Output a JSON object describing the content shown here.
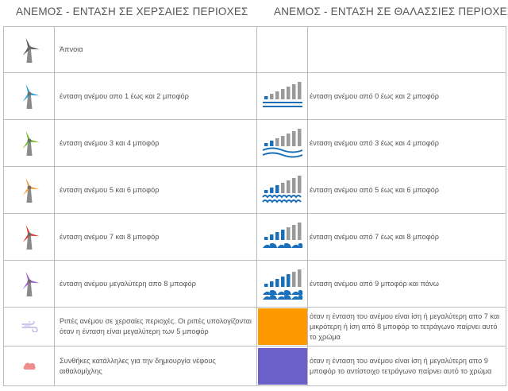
{
  "headers": {
    "land": "ΑΝΕΜΟΣ - ΕΝΤΑΣΗ ΣΕ ΧΕΡΣΑΙΕΣ ΠΕΡΙΟΧΕΣ",
    "sea": "ΑΝΕΜΟΣ - ΕΝΤΑΣΗ ΣΕ ΘΑΛΑΣΣΙΕΣ ΠΕΡΙΟΧΕΣ"
  },
  "colors": {
    "sea_blue": "#1a6fba",
    "bar_grey": "#9a9a9a",
    "gust_orange": "#ff9900",
    "fog_purple": "#6b5fc8"
  },
  "rows": [
    {
      "land_icon": "windmill-grey-icon",
      "blade_color": "#555555",
      "land_text": "Άπνοια",
      "sea_icon": "",
      "sea_text": ""
    },
    {
      "land_icon": "windmill-blue-icon",
      "blade_color": "#2a9fd6",
      "land_text": "ένταση ανέμου απο 1 έως και 2 μποφόρ",
      "sea_icon": "sea-level-1-icon",
      "sea_text": "ένταση ανέμου από 0 έως και 2 μποφόρ"
    },
    {
      "land_icon": "windmill-green-icon",
      "blade_color": "#6cbf2a",
      "land_text": "ένταση ανέμου 3 και 4 μποφόρ",
      "sea_icon": "sea-level-2-icon",
      "sea_text": "ένταση ανέμου από 3 έως και 4 μποφόρ"
    },
    {
      "land_icon": "windmill-orange-icon",
      "blade_color": "#f7a13c",
      "land_text": "ένταση ανέμου 5 και 6 μποφόρ",
      "sea_icon": "sea-level-3-icon",
      "sea_text": "ένταση ανέμου από 5 έως και 6 μποφόρ"
    },
    {
      "land_icon": "windmill-red-icon",
      "blade_color": "#e03a2e",
      "land_text": "ένταση ανέμου 7 και 8 μποφόρ",
      "sea_icon": "sea-level-4-icon",
      "sea_text": "ένταση ανέμου από 7 έως και 8 μποφόρ"
    },
    {
      "land_icon": "windmill-purple-icon",
      "blade_color": "#a45fd6",
      "land_text": "ένταση ανέμου μεγαλύτερη απο 8 μποφόρ",
      "sea_icon": "sea-level-5-icon",
      "sea_text": "ένταση ανέμου από 9 μποφόρ και πάνω"
    },
    {
      "land_icon": "wind-gust-icon",
      "land_text": "Ριπές ανέμου σε χερσαίες περιοχές. Οι ριπές υπολογίζονται όταν η ένταση είναι μεγαλύτερη των 5 μποφόρ",
      "sea_icon": "orange-swatch",
      "sea_text": "όταν η ένταση του ανέμου είναι ίση ή μεγαλύτερη απο 7 και μικρότερη ή ίση από 8 μποφόρ το τετράγωνο παίρνει αυτό το χρώμα"
    },
    {
      "land_icon": "fog-cloud-icon",
      "land_text": "Συνθήκες κατάλληλες για την δημιουργία νέφους αιθαλομίχλης",
      "sea_icon": "purple-swatch",
      "sea_text": "όταν η ένταση του ανέμου είναι ίση ή μεγαλύτερη απο 9 μποφόρ το αντίστοιχο τετράγωνο παίρνει αυτό το χρώμα"
    }
  ]
}
